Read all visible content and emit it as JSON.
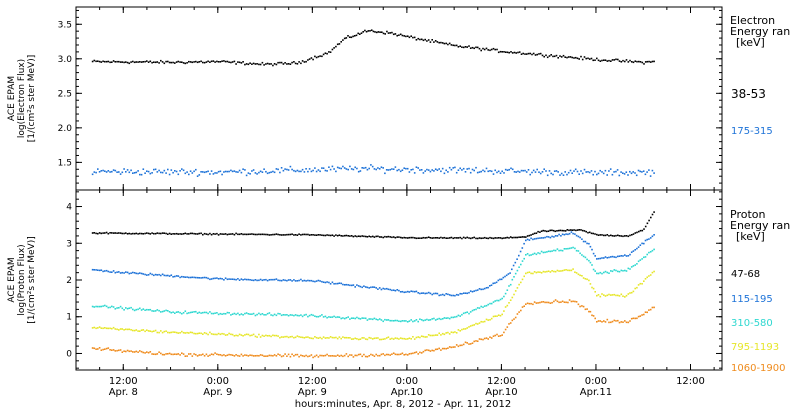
{
  "chart_data": [
    {
      "type": "scatter",
      "panel": "electron",
      "ylabel_lines": [
        "ACE EPAM",
        "log(Electron Flux)",
        "[1/(cm²s ster MeV)]"
      ],
      "ylim": [
        1.1,
        3.75
      ],
      "yticks": [
        "1.5",
        "2.0",
        "2.5",
        "3.0",
        "3.5"
      ],
      "legend": {
        "title_lines": [
          "Electron",
          "Energy ran",
          "[keV]"
        ],
        "placement": "right"
      },
      "series": [
        {
          "name": "38-53",
          "color": "#000000",
          "noise": 0.03,
          "knots": [
            [
              "2012-04-08 08:00",
              2.97
            ],
            [
              "2012-04-08 18:00",
              2.96
            ],
            [
              "2012-04-09 00:00",
              2.97
            ],
            [
              "2012-04-09 06:00",
              2.93
            ],
            [
              "2012-04-09 10:00",
              2.95
            ],
            [
              "2012-04-09 14:00",
              3.1
            ],
            [
              "2012-04-09 16:00",
              3.3
            ],
            [
              "2012-04-09 19:00",
              3.42
            ],
            [
              "2012-04-09 22:00",
              3.38
            ],
            [
              "2012-04-10 00:00",
              3.33
            ],
            [
              "2012-04-10 06:00",
              3.2
            ],
            [
              "2012-04-10 12:00",
              3.12
            ],
            [
              "2012-04-10 18:00",
              3.06
            ],
            [
              "2012-04-11 00:00",
              3.0
            ],
            [
              "2012-04-11 06:00",
              2.96
            ],
            [
              "2012-04-11 07:30",
              2.97
            ]
          ]
        },
        {
          "name": "175-315",
          "color": "#1e73d8",
          "noise": 0.07,
          "knots": [
            [
              "2012-04-08 08:00",
              1.38
            ],
            [
              "2012-04-09 00:00",
              1.37
            ],
            [
              "2012-04-09 18:00",
              1.42
            ],
            [
              "2012-04-10 06:00",
              1.4
            ],
            [
              "2012-04-11 00:00",
              1.36
            ],
            [
              "2012-04-11 07:30",
              1.37
            ]
          ]
        }
      ]
    },
    {
      "type": "scatter",
      "panel": "proton",
      "ylabel_lines": [
        "ACE EPAM",
        "log(Proton Flux)",
        "[1/(cm²s ster MeV)]"
      ],
      "ylim": [
        -0.45,
        4.45
      ],
      "yticks": [
        "0",
        "1",
        "2",
        "3",
        "4"
      ],
      "legend": {
        "title_lines": [
          "Proton",
          "Energy ran",
          "[keV]"
        ],
        "placement": "right"
      },
      "series": [
        {
          "name": "47-68",
          "color": "#000000",
          "noise": 0.025,
          "knots": [
            [
              "2012-04-08 08:00",
              3.3
            ],
            [
              "2012-04-09 12:00",
              3.25
            ],
            [
              "2012-04-10 00:00",
              3.17
            ],
            [
              "2012-04-10 12:00",
              3.16
            ],
            [
              "2012-04-10 15:00",
              3.2
            ],
            [
              "2012-04-10 17:00",
              3.35
            ],
            [
              "2012-04-10 22:00",
              3.38
            ],
            [
              "2012-04-11 00:00",
              3.25
            ],
            [
              "2012-04-11 04:00",
              3.22
            ],
            [
              "2012-04-11 06:00",
              3.4
            ],
            [
              "2012-04-11 07:30",
              3.95
            ]
          ]
        },
        {
          "name": "115-195",
          "color": "#1e73d8",
          "noise": 0.04,
          "knots": [
            [
              "2012-04-08 08:00",
              2.3
            ],
            [
              "2012-04-08 12:00",
              2.22
            ],
            [
              "2012-04-09 00:00",
              2.05
            ],
            [
              "2012-04-09 12:00",
              2.0
            ],
            [
              "2012-04-09 18:00",
              1.85
            ],
            [
              "2012-04-10 00:00",
              1.7
            ],
            [
              "2012-04-10 06:00",
              1.6
            ],
            [
              "2012-04-10 10:00",
              1.8
            ],
            [
              "2012-04-10 13:00",
              2.2
            ],
            [
              "2012-04-10 15:00",
              3.1
            ],
            [
              "2012-04-10 21:00",
              3.3
            ],
            [
              "2012-04-10 23:00",
              3.0
            ],
            [
              "2012-04-11 00:00",
              2.6
            ],
            [
              "2012-04-11 04:00",
              2.7
            ],
            [
              "2012-04-11 07:30",
              3.3
            ]
          ]
        },
        {
          "name": "310-580",
          "color": "#2fd8d0",
          "noise": 0.05,
          "knots": [
            [
              "2012-04-08 08:00",
              1.32
            ],
            [
              "2012-04-08 18:00",
              1.15
            ],
            [
              "2012-04-09 12:00",
              1.05
            ],
            [
              "2012-04-10 00:00",
              0.9
            ],
            [
              "2012-04-10 06:00",
              1.0
            ],
            [
              "2012-04-10 12:00",
              1.5
            ],
            [
              "2012-04-10 15:00",
              2.7
            ],
            [
              "2012-04-10 21:00",
              2.9
            ],
            [
              "2012-04-10 23:00",
              2.55
            ],
            [
              "2012-04-11 00:00",
              2.2
            ],
            [
              "2012-04-11 04:00",
              2.3
            ],
            [
              "2012-04-11 07:30",
              2.9
            ]
          ]
        },
        {
          "name": "795-1193",
          "color": "#e6e62a",
          "noise": 0.05,
          "knots": [
            [
              "2012-04-08 08:00",
              0.72
            ],
            [
              "2012-04-08 18:00",
              0.6
            ],
            [
              "2012-04-09 12:00",
              0.45
            ],
            [
              "2012-04-10 00:00",
              0.42
            ],
            [
              "2012-04-10 06:00",
              0.6
            ],
            [
              "2012-04-10 12:00",
              1.1
            ],
            [
              "2012-04-10 15:00",
              2.2
            ],
            [
              "2012-04-10 21:00",
              2.3
            ],
            [
              "2012-04-10 23:00",
              2.0
            ],
            [
              "2012-04-11 00:00",
              1.6
            ],
            [
              "2012-04-11 04:00",
              1.6
            ],
            [
              "2012-04-11 07:30",
              2.3
            ]
          ]
        },
        {
          "name": "1060-1900",
          "color": "#ef8c1e",
          "noise": 0.06,
          "knots": [
            [
              "2012-04-08 08:00",
              0.15
            ],
            [
              "2012-04-08 18:00",
              0.0
            ],
            [
              "2012-04-09 12:00",
              -0.05
            ],
            [
              "2012-04-10 00:00",
              0.0
            ],
            [
              "2012-04-10 06:00",
              0.2
            ],
            [
              "2012-04-10 12:00",
              0.55
            ],
            [
              "2012-04-10 15:00",
              1.4
            ],
            [
              "2012-04-10 21:00",
              1.45
            ],
            [
              "2012-04-10 23:00",
              1.2
            ],
            [
              "2012-04-11 00:00",
              0.9
            ],
            [
              "2012-04-11 04:00",
              0.88
            ],
            [
              "2012-04-11 07:30",
              1.3
            ]
          ]
        }
      ]
    }
  ],
  "x_axis": {
    "range": [
      "2012-04-08 06:00",
      "2012-04-11 16:00"
    ],
    "ticks": [
      {
        "time": "2012-04-08 12:00",
        "label": "12:00",
        "date": "Apr. 8"
      },
      {
        "time": "2012-04-09 00:00",
        "label": "0:00",
        "date": "Apr. 9"
      },
      {
        "time": "2012-04-09 12:00",
        "label": "12:00",
        "date": "Apr. 9"
      },
      {
        "time": "2012-04-10 00:00",
        "label": "0:00",
        "date": "Apr.10"
      },
      {
        "time": "2012-04-10 12:00",
        "label": "12:00",
        "date": "Apr.10"
      },
      {
        "time": "2012-04-11 00:00",
        "label": "0:00",
        "date": "Apr.11"
      },
      {
        "time": "2012-04-11 12:00",
        "label": "12:00",
        "date": ""
      }
    ],
    "title": "hours:minutes, Apr.  8, 2012 - Apr. 11, 2012"
  }
}
